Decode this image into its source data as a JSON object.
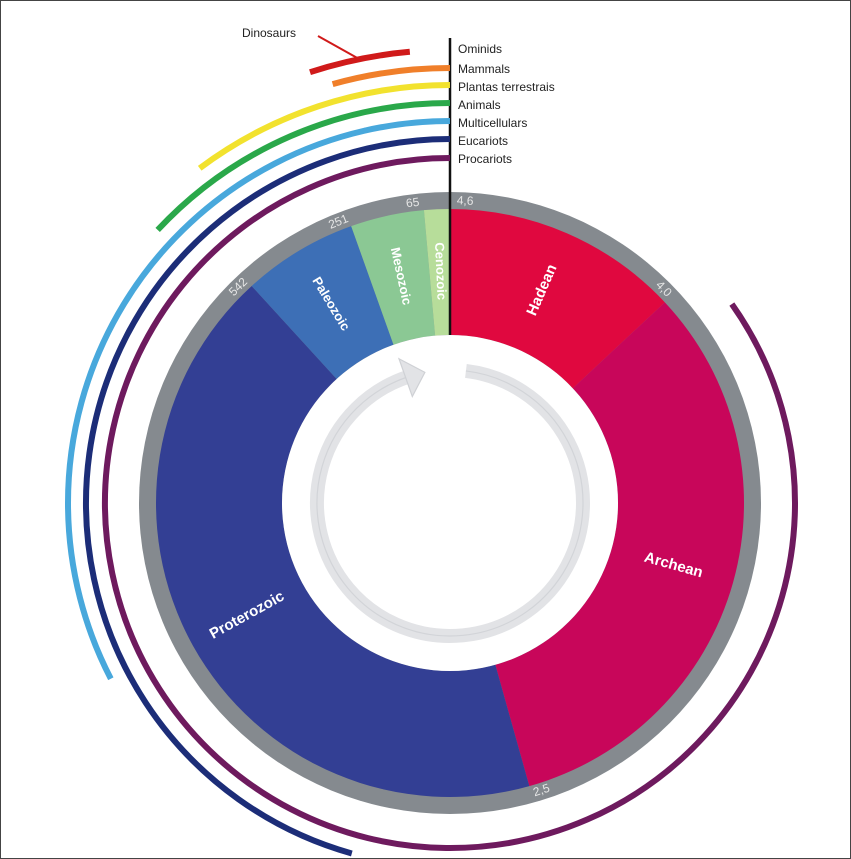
{
  "diagram": {
    "eras": [
      {
        "name": "Hadean",
        "start_ma": 4600,
        "end_ma": 4000,
        "color": "#e0083f"
      },
      {
        "name": "Archean",
        "start_ma": 4000,
        "end_ma": 2500,
        "color": "#c8065a"
      },
      {
        "name": "Proterozoic",
        "start_ma": 2500,
        "end_ma": 542,
        "color": "#333f94"
      },
      {
        "name": "Paleozoic",
        "start_ma": 542,
        "end_ma": 251,
        "color": "#3d6fb6"
      },
      {
        "name": "Mesozoic",
        "start_ma": 251,
        "end_ma": 65,
        "color": "#8bc894"
      },
      {
        "name": "Cenozoic",
        "start_ma": 65,
        "end_ma": 0,
        "color": "#b7dd9a"
      }
    ],
    "ticks": [
      {
        "label": "4,6",
        "ma": 4600
      },
      {
        "label": "4,0",
        "ma": 4000
      },
      {
        "label": "2,5",
        "ma": 2500
      },
      {
        "label": "542",
        "ma": 542
      },
      {
        "label": "251",
        "ma": 251
      },
      {
        "label": "65",
        "ma": 65
      }
    ],
    "life_arcs": [
      {
        "label": "Ominids",
        "start_ma": 6,
        "color": "#111111"
      },
      {
        "label": "Mammals",
        "start_ma": 200,
        "color": "#f07f2a"
      },
      {
        "label": "Plantas terrestrais",
        "start_ma": 470,
        "color": "#f2e22e"
      },
      {
        "label": "Animals",
        "start_ma": 600,
        "color": "#2aa84a"
      },
      {
        "label": "Multicellulars",
        "start_ma": 1500,
        "color": "#48a8dc"
      },
      {
        "label": "Eucariots",
        "start_ma": 2100,
        "color": "#1c2d78"
      },
      {
        "label": "Procariots",
        "start_ma": 3900,
        "color": "#6e1a5e"
      }
    ],
    "dinosaurs": {
      "label": "Dinosaurs",
      "start_ma": 230,
      "end_ma": 65,
      "color": "#d01a1a"
    }
  }
}
